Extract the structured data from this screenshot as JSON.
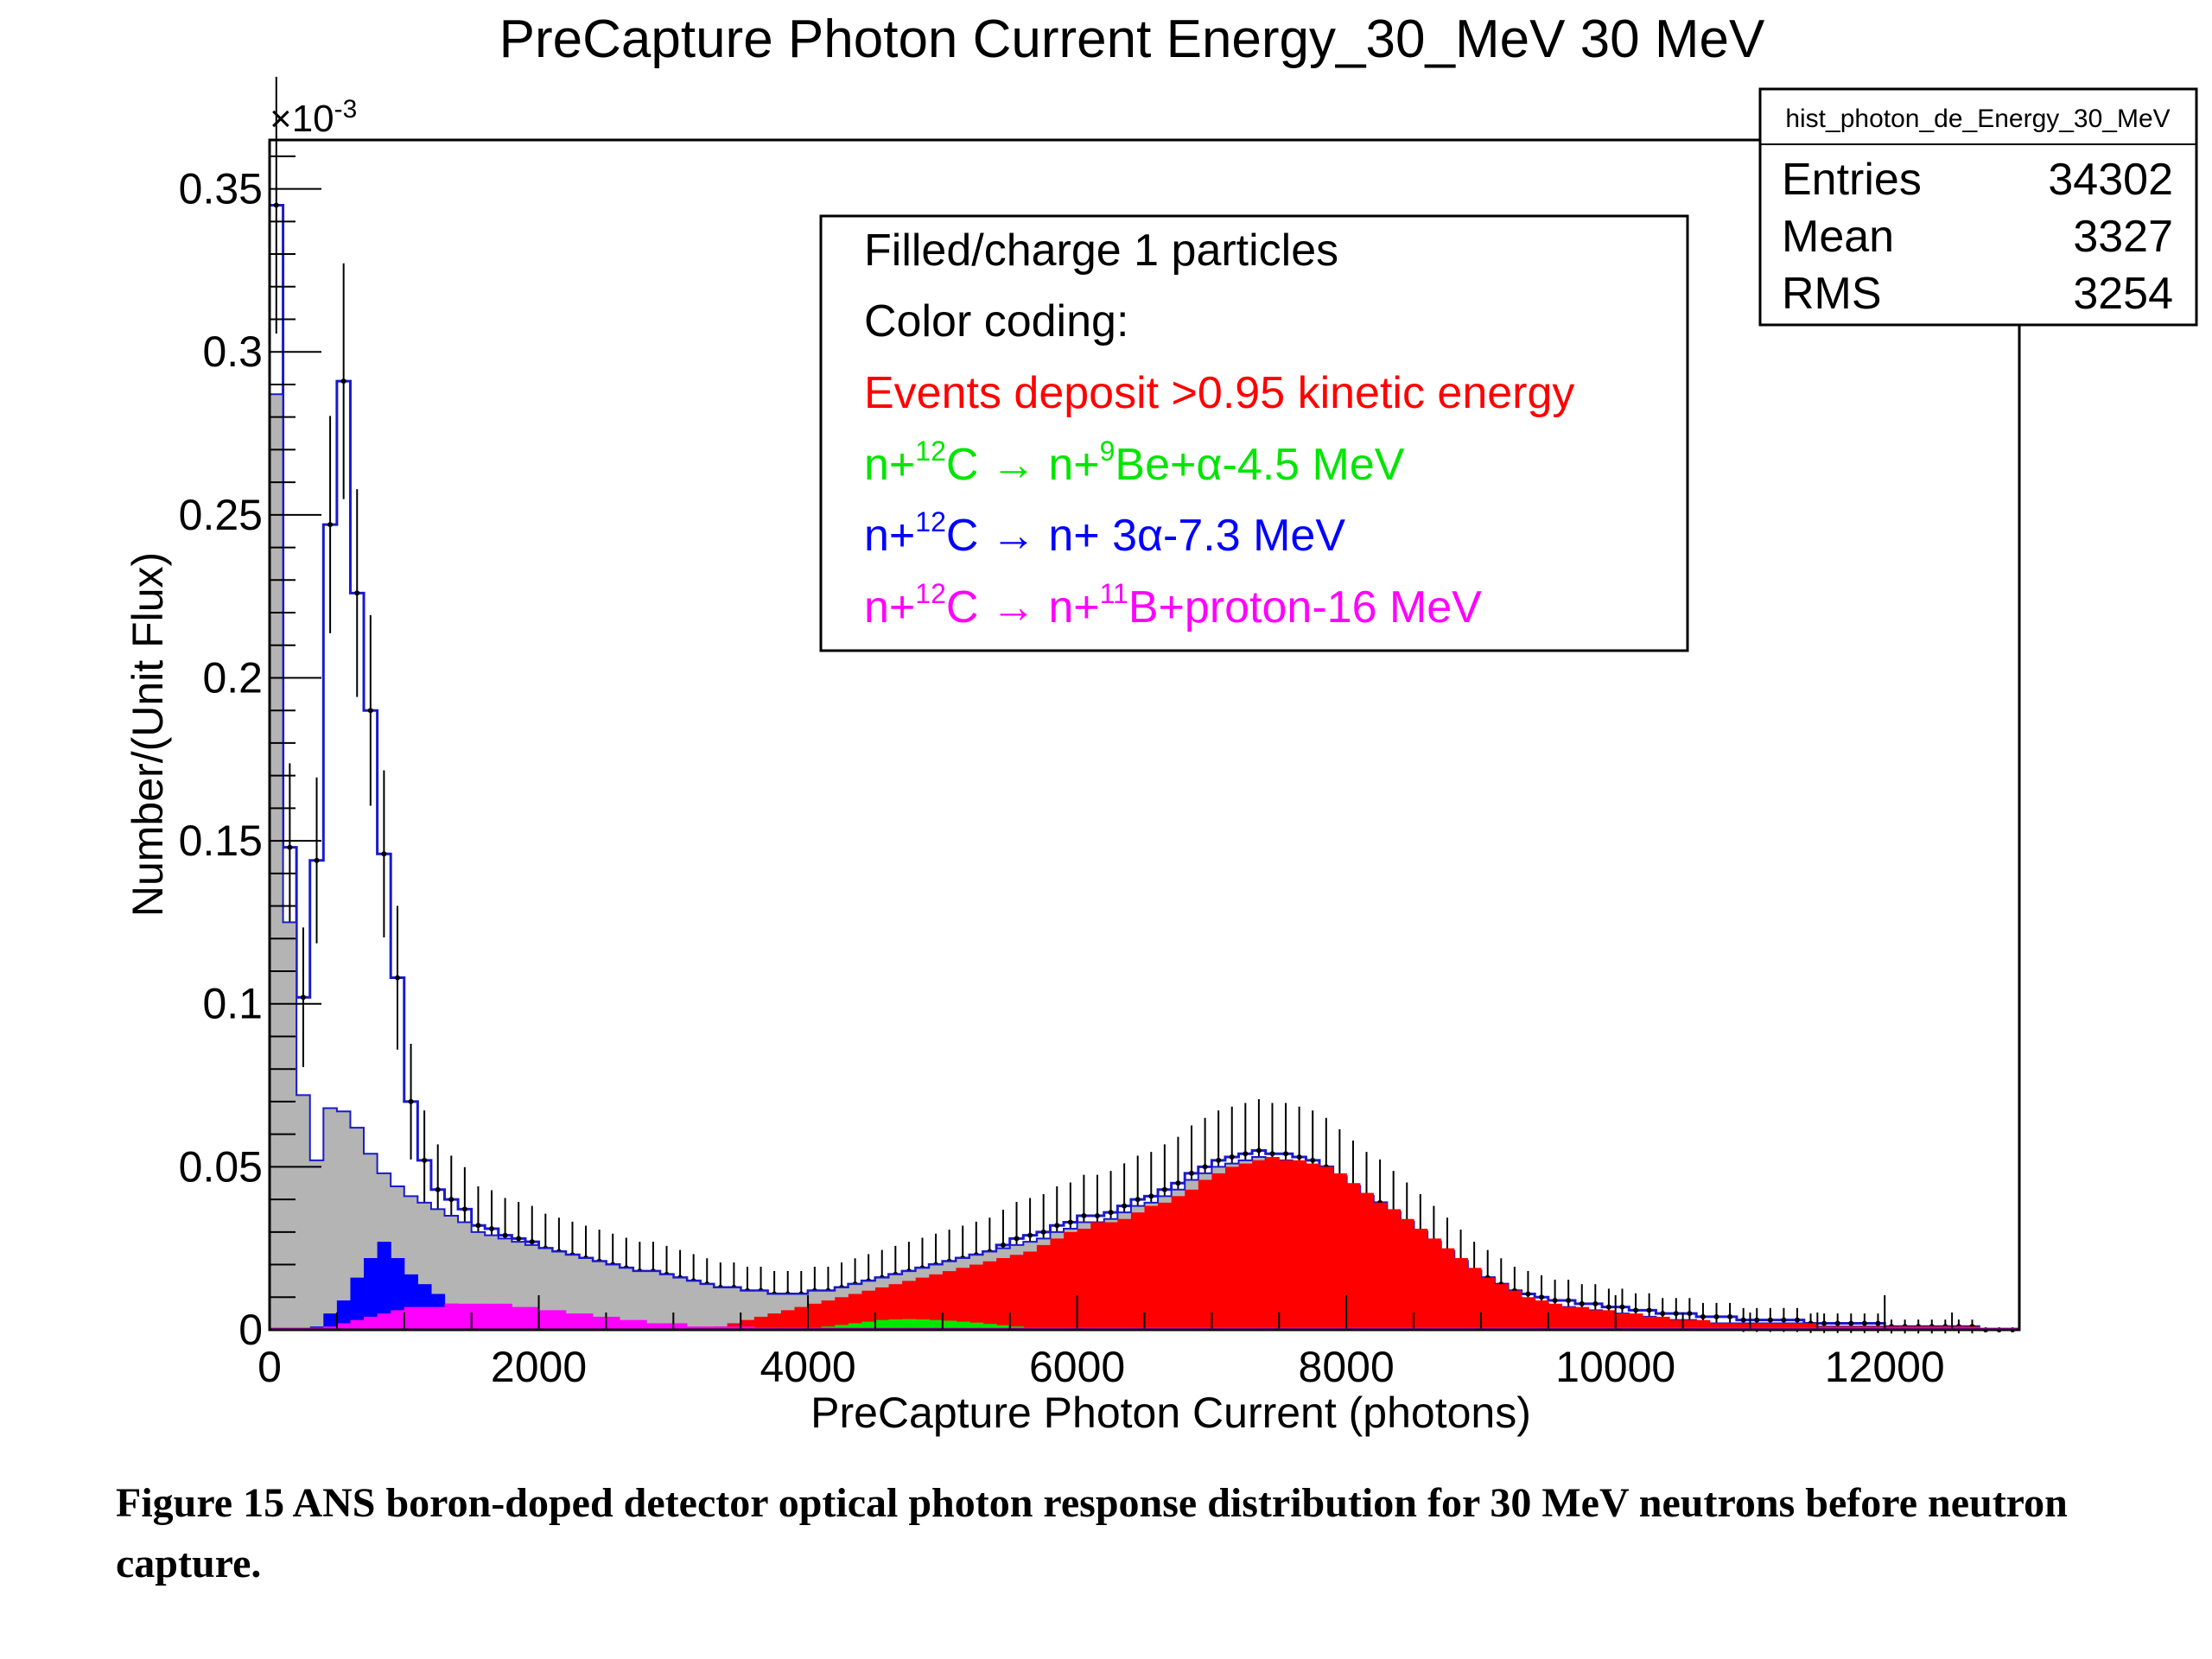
{
  "chart_data": {
    "type": "histogram",
    "title": "PreCapture Photon Current Energy_30_MeV 30 MeV",
    "xlabel": "PreCapture Photon Current (photons)",
    "ylabel": "Number/(Unit Flux)",
    "y_exponent": "×10",
    "y_exponent_power": "-3",
    "xlim": [
      0,
      13000
    ],
    "ylim": [
      0,
      0.365
    ],
    "bin_width": 100,
    "x_ticks": [
      0,
      2000,
      4000,
      6000,
      8000,
      10000,
      12000
    ],
    "x_tick_labels": [
      "0",
      "2000",
      "4000",
      "6000",
      "8000",
      "10000",
      "12000"
    ],
    "y_ticks": [
      0,
      0.05,
      0.1,
      0.15,
      0.2,
      0.25,
      0.3,
      0.35
    ],
    "y_tick_labels": [
      "0",
      "0.05",
      "0.1",
      "0.15",
      "0.2",
      "0.25",
      "0.3",
      "0.35"
    ],
    "stats": {
      "name": "hist_photon_de_Energy_30_MeV",
      "rows": [
        {
          "label": "Entries",
          "value": "34302"
        },
        {
          "label": "Mean",
          "value": "3327"
        },
        {
          "label": "RMS",
          "value": "3254"
        }
      ]
    },
    "legend": {
      "line1": "Filled/charge 1 particles",
      "line2": "Color coding:",
      "red": "Events deposit >0.95 kinetic energy",
      "green": {
        "a": "n+",
        "a_sup": "12",
        "b": "C → n+",
        "b_sup": "9",
        "c": "Be+α-4.5 MeV"
      },
      "blue": {
        "a": "n+",
        "a_sup": "12",
        "b": "C → n+ 3α-7.3 MeV"
      },
      "magenta": {
        "a": "n+",
        "a_sup": "12",
        "b": "C → n+",
        "b_sup": "11",
        "c": "B+proton-16 MeV"
      }
    },
    "colors": {
      "total": "#1a1acc",
      "grey": "#b4b4b4",
      "red": "#ff0000",
      "green": "#00e600",
      "blue": "#0000ff",
      "magenta": "#ff00ff"
    },
    "series": [
      {
        "id": "total",
        "style": "outline",
        "start": 0,
        "values": [
          0.345,
          0.148,
          0.102,
          0.144,
          0.247,
          0.291,
          0.226,
          0.19,
          0.146,
          0.108,
          0.07,
          0.052,
          0.043,
          0.04,
          0.037,
          0.032,
          0.031,
          0.029,
          0.028,
          0.027,
          0.025,
          0.024,
          0.023,
          0.022,
          0.021,
          0.02,
          0.019,
          0.018,
          0.018,
          0.017,
          0.016,
          0.015,
          0.014,
          0.013,
          0.013,
          0.012,
          0.012,
          0.011,
          0.011,
          0.011,
          0.012,
          0.012,
          0.013,
          0.014,
          0.015,
          0.016,
          0.017,
          0.018,
          0.019,
          0.02,
          0.021,
          0.022,
          0.023,
          0.024,
          0.026,
          0.028,
          0.029,
          0.03,
          0.032,
          0.033,
          0.035,
          0.035,
          0.036,
          0.038,
          0.04,
          0.041,
          0.043,
          0.045,
          0.048,
          0.05,
          0.052,
          0.053,
          0.054,
          0.055,
          0.054,
          0.054,
          0.053,
          0.052,
          0.05,
          0.047,
          0.044,
          0.041,
          0.039,
          0.036,
          0.033,
          0.03,
          0.027,
          0.024,
          0.021,
          0.018,
          0.016,
          0.014,
          0.012,
          0.011,
          0.01,
          0.009,
          0.009,
          0.008,
          0.008,
          0.007,
          0.007,
          0.006,
          0.006,
          0.005,
          0.005,
          0.005,
          0.004,
          0.004,
          0.004,
          0.003,
          0.003,
          0.003,
          0.003,
          0.003,
          0.002,
          0.002,
          0.002,
          0.002,
          0.002,
          0.002,
          0.001,
          0.001,
          0.001,
          0.001,
          0.001,
          0.001,
          0.001,
          0.0,
          0.0,
          0.0
        ]
      },
      {
        "id": "grey",
        "style": "fill",
        "start": 0,
        "values": [
          0.287,
          0.125,
          0.072,
          0.052,
          0.068,
          0.067,
          0.062,
          0.054,
          0.048,
          0.044,
          0.041,
          0.039,
          0.037,
          0.035,
          0.033,
          0.03,
          0.029,
          0.028,
          0.027,
          0.026,
          0.025,
          0.024,
          0.023,
          0.022,
          0.021,
          0.02,
          0.019,
          0.018,
          0.018,
          0.017,
          0.016,
          0.015,
          0.014,
          0.013,
          0.013,
          0.012,
          0.012,
          0.011,
          0.011,
          0.011,
          0.012,
          0.012,
          0.013,
          0.014,
          0.015,
          0.016,
          0.017,
          0.018,
          0.019,
          0.02,
          0.021,
          0.022,
          0.023,
          0.024,
          0.025,
          0.026,
          0.027,
          0.028,
          0.03,
          0.031,
          0.033,
          0.033,
          0.034,
          0.036,
          0.038,
          0.039,
          0.041,
          0.043,
          0.046,
          0.048,
          0.05,
          0.051,
          0.052,
          0.053,
          0.052,
          0.052,
          0.051,
          0.05,
          0.048,
          0.045,
          0.042,
          0.039,
          0.037,
          0.034,
          0.031,
          0.028,
          0.025,
          0.022,
          0.019,
          0.016,
          0.014,
          0.012,
          0.01,
          0.009,
          0.008,
          0.007,
          0.007,
          0.006,
          0.006,
          0.005,
          0.005,
          0.004,
          0.004,
          0.003,
          0.003,
          0.003,
          0.002,
          0.002,
          0.002,
          0.002,
          0.002,
          0.002,
          0.002,
          0.002,
          0.001,
          0.001,
          0.001,
          0.001,
          0.001,
          0.001,
          0.001,
          0.001,
          0.001,
          0.001,
          0.001,
          0.001,
          0.0,
          0.0,
          0.0,
          0.0
        ]
      },
      {
        "id": "red",
        "style": "fill",
        "start": 3300,
        "values": [
          0.001,
          0.002,
          0.003,
          0.004,
          0.005,
          0.006,
          0.007,
          0.008,
          0.009,
          0.01,
          0.011,
          0.012,
          0.013,
          0.014,
          0.015,
          0.016,
          0.017,
          0.018,
          0.019,
          0.02,
          0.021,
          0.022,
          0.023,
          0.024,
          0.026,
          0.028,
          0.03,
          0.031,
          0.033,
          0.033,
          0.034,
          0.036,
          0.038,
          0.039,
          0.041,
          0.043,
          0.046,
          0.048,
          0.05,
          0.051,
          0.052,
          0.053,
          0.052,
          0.052,
          0.051,
          0.05,
          0.048,
          0.045,
          0.042,
          0.039,
          0.037,
          0.034,
          0.031,
          0.028,
          0.025,
          0.022,
          0.019,
          0.016,
          0.014,
          0.012,
          0.01,
          0.009,
          0.008,
          0.007,
          0.007,
          0.006,
          0.006,
          0.005,
          0.005,
          0.004,
          0.004,
          0.003,
          0.003,
          0.003,
          0.002,
          0.002,
          0.002,
          0.002,
          0.002,
          0.002,
          0.002,
          0.002,
          0.001,
          0.001,
          0.001,
          0.001,
          0.001,
          0.001,
          0.001,
          0.001,
          0.001,
          0.001,
          0.001,
          0.001
        ]
      },
      {
        "id": "green",
        "style": "fill",
        "start": 4000,
        "values": [
          0.0005,
          0.001,
          0.0015,
          0.002,
          0.0025,
          0.003,
          0.0032,
          0.0033,
          0.0032,
          0.003,
          0.0028,
          0.0025,
          0.0022,
          0.0018,
          0.0014,
          0.001,
          0.0006,
          0.0003
        ]
      },
      {
        "id": "blue",
        "style": "fill",
        "start": 300,
        "values": [
          0.001,
          0.005,
          0.009,
          0.016,
          0.022,
          0.027,
          0.022,
          0.017,
          0.014,
          0.011,
          0.008,
          0.006,
          0.004,
          0.003,
          0.002,
          0.001
        ]
      },
      {
        "id": "magenta",
        "style": "fill",
        "start": 400,
        "values": [
          0.001,
          0.002,
          0.003,
          0.004,
          0.005,
          0.006,
          0.007,
          0.007,
          0.007,
          0.008,
          0.008,
          0.008,
          0.008,
          0.008,
          0.007,
          0.007,
          0.006,
          0.006,
          0.005,
          0.005,
          0.004,
          0.004,
          0.003,
          0.003,
          0.002,
          0.002,
          0.002,
          0.001,
          0.001,
          0.001,
          0.001,
          0.001,
          0.0005,
          0.0005
        ]
      }
    ]
  },
  "caption": {
    "text": "Figure 15  ANS boron-doped detector optical photon response distribution for  30 MeV neutrons before neutron capture."
  }
}
